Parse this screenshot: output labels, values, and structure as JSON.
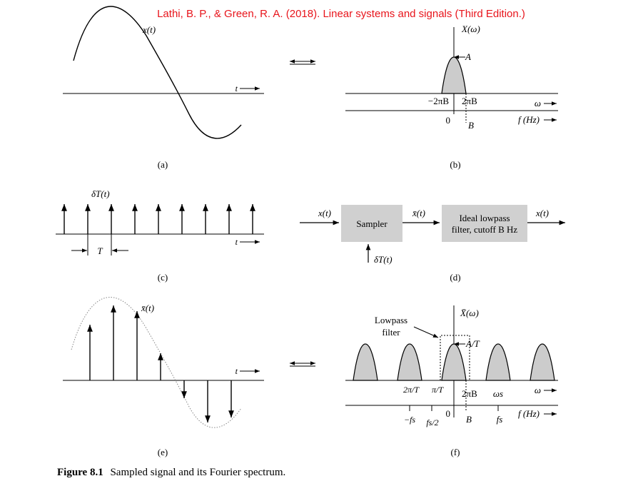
{
  "citation": "Lathi, B. P., & Green, R. A. (2018). Linear systems and signals (Third Edition.)",
  "colors": {
    "citation": "#e8141b",
    "ink": "#000000",
    "shade": "#cccccc",
    "block": "#d0d0d0"
  },
  "panel_a": {
    "signal": "x(t)",
    "t_axis": "t",
    "caption": "(a)"
  },
  "panel_b": {
    "spectrum": "X(ω)",
    "peak": "A",
    "neg_band": "−2πB",
    "pos_band": "2πB",
    "omega_axis": "ω",
    "zero": "0",
    "b": "B",
    "f_axis": "f (Hz)",
    "caption": "(b)"
  },
  "panel_c": {
    "impulse_train": "δT(t)",
    "period": "T",
    "t_axis": "t",
    "caption": "(c)"
  },
  "panel_d": {
    "input": "x(t)",
    "sampler": "Sampler",
    "sampled": "x̄(t)",
    "filter_line1": "Ideal lowpass",
    "filter_line2": "filter, cutoff B Hz",
    "output": "x(t)",
    "impulse": "δT(t)",
    "caption": "(d)"
  },
  "panel_e": {
    "sampled_signal": "x̄(t)",
    "t_axis": "t",
    "caption": "(e)"
  },
  "panel_f": {
    "spectrum": "X̄(ω)",
    "peak": "A/T",
    "lowpass_line1": "Lowpass",
    "lowpass_line2": "filter",
    "two_pi_over_t": "2π/T",
    "pi_over_t": "π/T",
    "pos_band": "2πB",
    "omega_s": "ωs",
    "omega_axis": "ω",
    "neg_fs": "−fs",
    "fs_half": "fs/2",
    "zero": "0",
    "b": "B",
    "fs": "fs",
    "f_axis": "f (Hz)",
    "caption": "(f)"
  },
  "figure_caption": {
    "label": "Figure 8.1",
    "text": "Sampled signal and its Fourier spectrum."
  }
}
